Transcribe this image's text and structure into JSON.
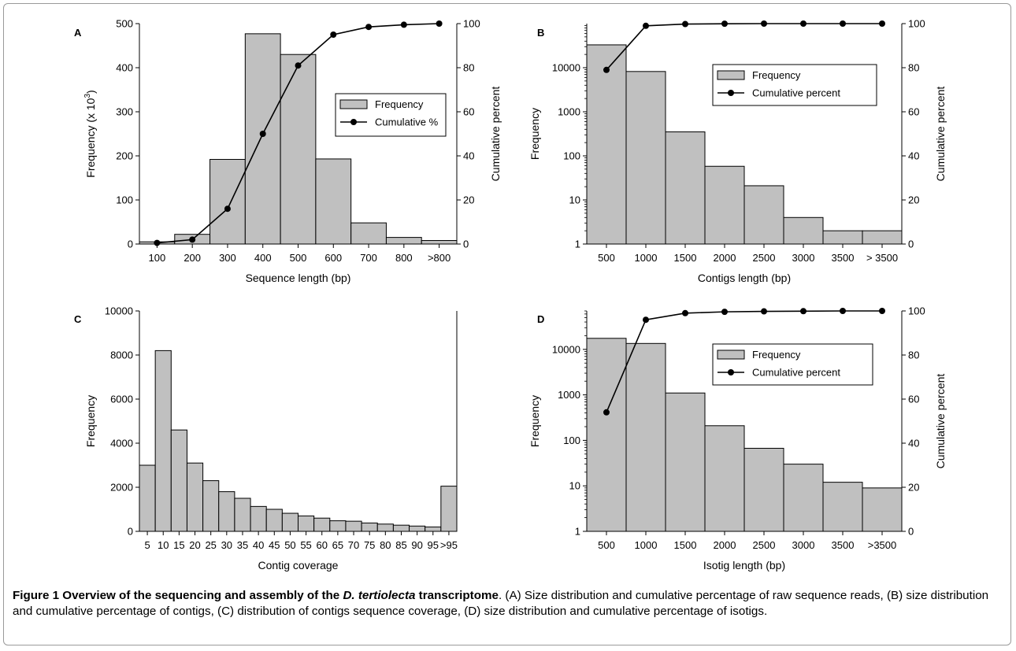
{
  "figure": {
    "caption_title_prefix": "Figure 1 Overview of the sequencing and assembly of the ",
    "caption_title_italic": "D. tertiolecta",
    "caption_title_suffix": " transcriptome",
    "caption_body": ". (A) Size distribution and cumulative percentage of raw sequence reads, (B) size distribution and cumulative percentage of contigs, (C) distribution of contigs sequence coverage, (D) size distribution and cumulative percentage of isotigs."
  },
  "chart_data": [
    {
      "panel": "A",
      "type": "bar",
      "categories": [
        "100",
        "200",
        "300",
        "400",
        "500",
        "600",
        "700",
        "800",
        ">800"
      ],
      "series": [
        {
          "name": "Frequency",
          "type": "bar",
          "axis": "left",
          "values": [
            5,
            22,
            192,
            477,
            430,
            193,
            48,
            15,
            8
          ]
        },
        {
          "name": "Cumulative %",
          "type": "line",
          "axis": "right",
          "values": [
            0.5,
            2,
            16,
            50,
            81,
            95,
            98.5,
            99.5,
            100
          ]
        }
      ],
      "xlabel": "Sequence length (bp)",
      "ylabel_text": "Frequency (x 10",
      "ylabel_sup": "3",
      "ylabel_close": ")",
      "y2label": "Cumulative percent",
      "ylim": [
        0,
        500
      ],
      "yticks": [
        0,
        100,
        200,
        300,
        400,
        500
      ],
      "y2lim": [
        0,
        100
      ],
      "y2ticks": [
        0,
        20,
        40,
        60,
        80,
        100
      ],
      "yscale": "linear",
      "legend_position": "center-right"
    },
    {
      "panel": "B",
      "type": "bar",
      "categories": [
        "500",
        "1000",
        "1500",
        "2000",
        "2500",
        "3000",
        "3500",
        "> 3500"
      ],
      "series": [
        {
          "name": "Frequency",
          "type": "bar",
          "axis": "left",
          "values": [
            33000,
            8200,
            350,
            58,
            21,
            4,
            2,
            2
          ]
        },
        {
          "name": "Cumulative percent",
          "type": "line",
          "axis": "right",
          "values": [
            79,
            99,
            99.8,
            99.95,
            100,
            100,
            100,
            100
          ]
        }
      ],
      "xlabel": "Contigs length (bp)",
      "ylabel_text": "Frequency",
      "y2label": "Cumulative percent",
      "ylim": [
        1,
        100000
      ],
      "yticks": [
        1,
        10,
        100,
        1000,
        10000
      ],
      "ytick_labels": [
        "1",
        "10",
        "100",
        "1000",
        "10000"
      ],
      "y2lim": [
        0,
        100
      ],
      "y2ticks": [
        0,
        20,
        40,
        60,
        80,
        100
      ],
      "yscale": "log",
      "legend_position": "top-right"
    },
    {
      "panel": "C",
      "type": "bar",
      "categories": [
        "5",
        "10",
        "15",
        "20",
        "25",
        "30",
        "35",
        "40",
        "45",
        "50",
        "55",
        "60",
        "65",
        "70",
        "75",
        "80",
        "85",
        "90",
        "95",
        ">95"
      ],
      "series": [
        {
          "name": "Frequency",
          "type": "bar",
          "axis": "left",
          "values": [
            3000,
            8200,
            4600,
            3100,
            2300,
            1800,
            1500,
            1130,
            1000,
            820,
            700,
            600,
            480,
            460,
            380,
            330,
            280,
            240,
            200,
            2050
          ]
        }
      ],
      "xlabel": "Contig coverage",
      "ylabel_text": "Frequency",
      "ylim": [
        0,
        10000
      ],
      "yticks": [
        0,
        2000,
        4000,
        6000,
        8000,
        10000
      ],
      "yscale": "linear"
    },
    {
      "panel": "D",
      "type": "bar",
      "categories": [
        "500",
        "1000",
        "1500",
        "2000",
        "2500",
        "3000",
        "3500",
        ">3500"
      ],
      "series": [
        {
          "name": "Frequency",
          "type": "bar",
          "axis": "left",
          "values": [
            17500,
            13500,
            1100,
            210,
            67,
            30,
            12,
            9
          ]
        },
        {
          "name": "Cumulative percent",
          "type": "line",
          "axis": "right",
          "values": [
            54,
            96,
            99,
            99.6,
            99.8,
            99.9,
            100,
            100
          ]
        }
      ],
      "xlabel": "Isotig length (bp)",
      "ylabel_text": "Frequency",
      "y2label": "Cumulative percent",
      "ylim": [
        1,
        70000
      ],
      "yticks": [
        1,
        10,
        100,
        1000,
        10000
      ],
      "ytick_labels": [
        "1",
        "10",
        "100",
        "1000",
        "10000"
      ],
      "y2lim": [
        0,
        100
      ],
      "y2ticks": [
        0,
        20,
        40,
        60,
        80,
        100
      ],
      "yscale": "log",
      "legend_position": "top-right"
    }
  ]
}
